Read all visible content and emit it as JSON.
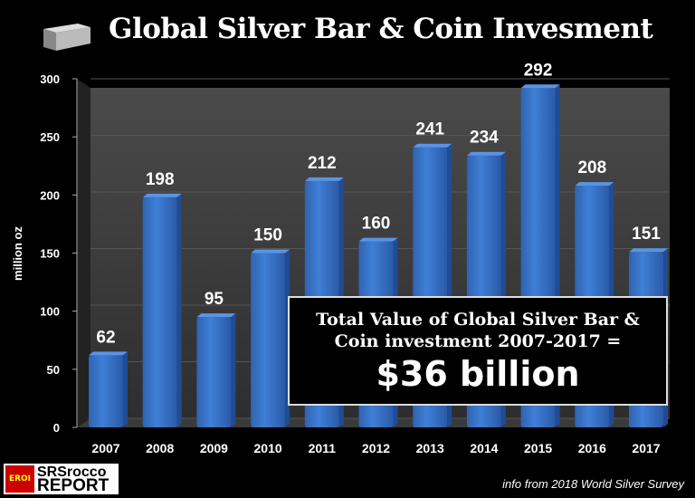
{
  "chart_data": {
    "type": "bar",
    "title": "Global Silver Bar & Coin Invesment",
    "ylabel": "million oz",
    "xlabel": "",
    "ylim": [
      0,
      300
    ],
    "yticks": [
      0,
      50,
      100,
      150,
      200,
      250,
      300
    ],
    "categories": [
      "2007",
      "2008",
      "2009",
      "2010",
      "2011",
      "2012",
      "2013",
      "2014",
      "2015",
      "2016",
      "2017"
    ],
    "values": [
      62,
      198,
      95,
      150,
      212,
      160,
      241,
      234,
      292,
      208,
      151
    ],
    "bar_color": "#3f7fd6",
    "annotation": {
      "line1": "Total Value of Global Silver Bar &",
      "line2": "Coin investment 2007-2017 =",
      "value": "$36 billion"
    }
  },
  "logo": {
    "badge": "EROI",
    "line1": "SRSrocco",
    "line2": "REPORT"
  },
  "source": "info from 2018 World Silver Survey"
}
